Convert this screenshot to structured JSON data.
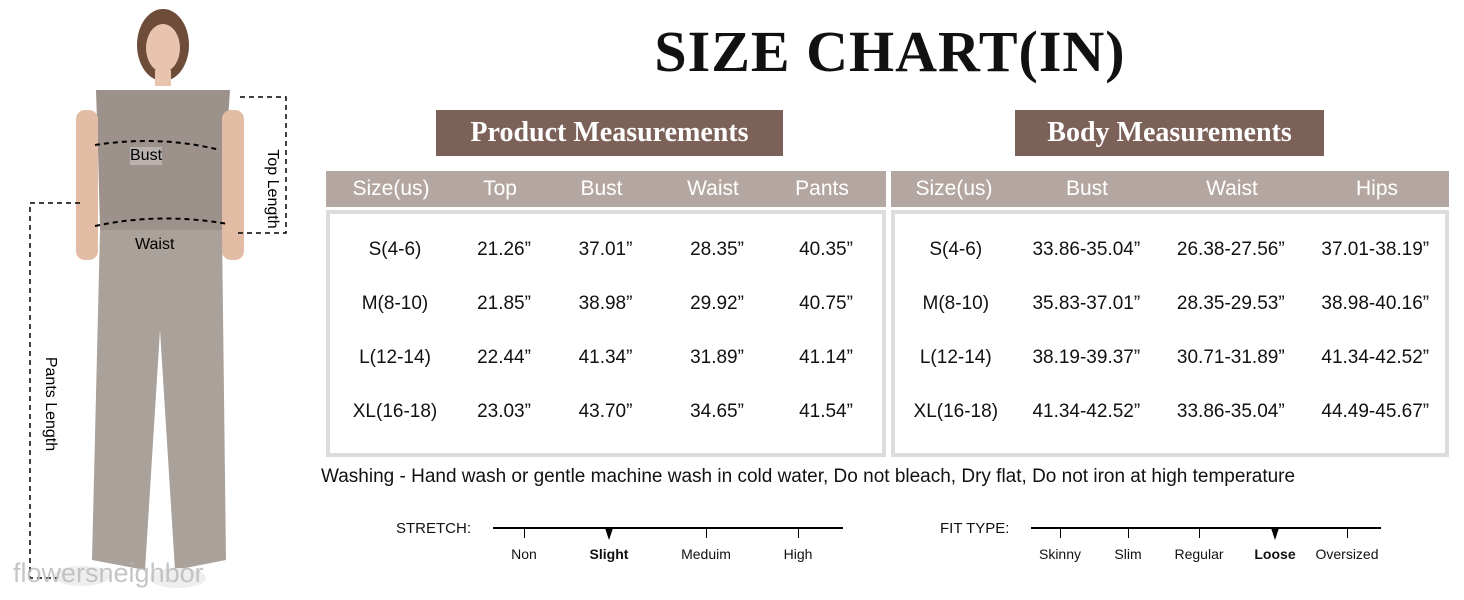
{
  "title": "SIZE CHART(IN)",
  "figure": {
    "labels": {
      "bust": "Bust",
      "waist": "Waist",
      "top_length": "Top Length",
      "pants_length": "Pants Length"
    },
    "watermark": "flowersneighbor"
  },
  "product": {
    "title": "Product Measurements",
    "headers": [
      "Size(us)",
      "Top",
      "Bust",
      "Waist",
      "Pants"
    ],
    "rows": [
      [
        "S(4-6)",
        "21.26”",
        "37.01”",
        "28.35”",
        "40.35”"
      ],
      [
        "M(8-10)",
        "21.85”",
        "38.98”",
        "29.92”",
        "40.75”"
      ],
      [
        "L(12-14)",
        "22.44”",
        "41.34”",
        "31.89”",
        "41.14”"
      ],
      [
        "XL(16-18)",
        "23.03”",
        "43.70”",
        "34.65”",
        "41.54”"
      ]
    ]
  },
  "body": {
    "title": "Body Measurements",
    "headers": [
      "Size(us)",
      "Bust",
      "Waist",
      "Hips"
    ],
    "rows": [
      [
        "S(4-6)",
        "33.86-35.04”",
        "26.38-27.56”",
        "37.01-38.19”"
      ],
      [
        "M(8-10)",
        "35.83-37.01”",
        "28.35-29.53”",
        "38.98-40.16”"
      ],
      [
        "L(12-14)",
        "38.19-39.37”",
        "30.71-31.89”",
        "41.34-42.52”"
      ],
      [
        "XL(16-18)",
        "41.34-42.52”",
        "33.86-35.04”",
        "44.49-45.67”"
      ]
    ]
  },
  "washing": "Washing - Hand wash or gentle machine wash in cold water, Do not bleach, Dry flat, Do not iron at high temperature",
  "stretch": {
    "label": "STRETCH:",
    "options": [
      "Non",
      "Slight",
      "Meduim",
      "High"
    ],
    "selected": "Slight"
  },
  "fit": {
    "label": "FIT TYPE:",
    "options": [
      "Skinny",
      "Slim",
      "Regular",
      "Loose",
      "Oversized"
    ],
    "selected": "Loose"
  },
  "colors": {
    "title_bg": "#7b6158",
    "header_bg": "#b4a7a2",
    "garment": "#9c918b"
  }
}
